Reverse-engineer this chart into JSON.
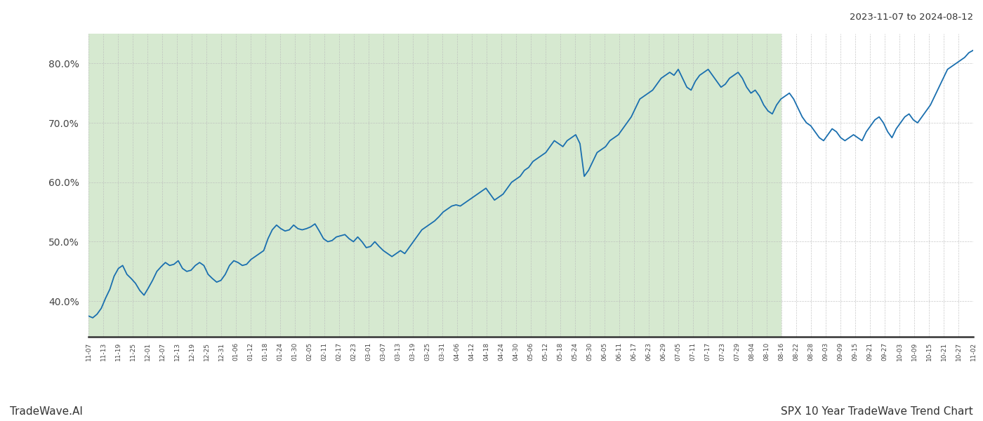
{
  "title_top_right": "2023-11-07 to 2024-08-12",
  "title_bottom_right": "SPX 10 Year TradeWave Trend Chart",
  "title_bottom_left": "TradeWave.AI",
  "line_color": "#1a6faf",
  "line_width": 1.3,
  "bg_color": "#ffffff",
  "shaded_bg_color": "#d6e9d0",
  "grid_color": "#bbbbbb",
  "ylim": [
    34,
    85
  ],
  "yticks": [
    40.0,
    50.0,
    60.0,
    70.0,
    80.0
  ],
  "tick_labels": [
    "11-07",
    "11-13",
    "11-19",
    "11-25",
    "12-01",
    "12-07",
    "12-13",
    "12-19",
    "12-25",
    "12-31",
    "01-06",
    "01-12",
    "01-18",
    "01-24",
    "01-30",
    "02-05",
    "02-11",
    "02-17",
    "02-23",
    "03-01",
    "03-07",
    "03-13",
    "03-19",
    "03-25",
    "03-31",
    "04-06",
    "04-12",
    "04-18",
    "04-24",
    "04-30",
    "05-06",
    "05-12",
    "05-18",
    "05-24",
    "05-30",
    "06-05",
    "06-11",
    "06-17",
    "06-23",
    "06-29",
    "07-05",
    "07-11",
    "07-17",
    "07-23",
    "07-29",
    "08-04",
    "08-10",
    "08-16",
    "08-22",
    "08-28",
    "09-03",
    "09-09",
    "09-15",
    "09-21",
    "09-27",
    "10-03",
    "10-09",
    "10-15",
    "10-21",
    "10-27",
    "11-02"
  ],
  "shade_start_label": "11-07",
  "shade_end_label": "08-16",
  "y_values": [
    37.5,
    37.2,
    37.8,
    38.8,
    40.5,
    42.0,
    44.2,
    45.5,
    46.0,
    44.5,
    43.8,
    43.0,
    41.8,
    41.0,
    42.2,
    43.5,
    45.0,
    45.8,
    46.5,
    46.0,
    46.2,
    46.8,
    45.5,
    45.0,
    45.2,
    46.0,
    46.5,
    46.0,
    44.5,
    43.8,
    43.2,
    43.5,
    44.5,
    46.0,
    46.8,
    46.5,
    46.0,
    46.2,
    47.0,
    47.5,
    48.0,
    48.5,
    50.5,
    52.0,
    52.8,
    52.2,
    51.8,
    52.0,
    52.8,
    52.2,
    52.0,
    52.2,
    52.5,
    53.0,
    51.8,
    50.5,
    50.0,
    50.2,
    50.8,
    51.0,
    51.2,
    50.5,
    50.0,
    50.8,
    50.0,
    49.0,
    49.2,
    50.0,
    49.2,
    48.5,
    48.0,
    47.5,
    48.0,
    48.5,
    48.0,
    49.0,
    50.0,
    51.0,
    52.0,
    52.5,
    53.0,
    53.5,
    54.2,
    55.0,
    55.5,
    56.0,
    56.2,
    56.0,
    56.5,
    57.0,
    57.5,
    58.0,
    58.5,
    59.0,
    58.0,
    57.0,
    57.5,
    58.0,
    59.0,
    60.0,
    60.5,
    61.0,
    62.0,
    62.5,
    63.5,
    64.0,
    64.5,
    65.0,
    66.0,
    67.0,
    66.5,
    66.0,
    67.0,
    67.5,
    68.0,
    66.5,
    61.0,
    62.0,
    63.5,
    65.0,
    65.5,
    66.0,
    67.0,
    67.5,
    68.0,
    69.0,
    70.0,
    71.0,
    72.5,
    74.0,
    74.5,
    75.0,
    75.5,
    76.5,
    77.5,
    78.0,
    78.5,
    78.0,
    79.0,
    77.5,
    76.0,
    75.5,
    77.0,
    78.0,
    78.5,
    79.0,
    78.0,
    77.0,
    76.0,
    76.5,
    77.5,
    78.0,
    78.5,
    77.5,
    76.0,
    75.0,
    75.5,
    74.5,
    73.0,
    72.0,
    71.5,
    73.0,
    74.0,
    74.5,
    75.0,
    74.0,
    72.5,
    71.0,
    70.0,
    69.5,
    68.5,
    67.5,
    67.0,
    68.0,
    69.0,
    68.5,
    67.5,
    67.0,
    67.5,
    68.0,
    67.5,
    67.0,
    68.5,
    69.5,
    70.5,
    71.0,
    70.0,
    68.5,
    67.5,
    69.0,
    70.0,
    71.0,
    71.5,
    70.5,
    70.0,
    71.0,
    72.0,
    73.0,
    74.5,
    76.0,
    77.5,
    79.0,
    79.5,
    80.0,
    80.5,
    81.0,
    81.8,
    82.2
  ]
}
